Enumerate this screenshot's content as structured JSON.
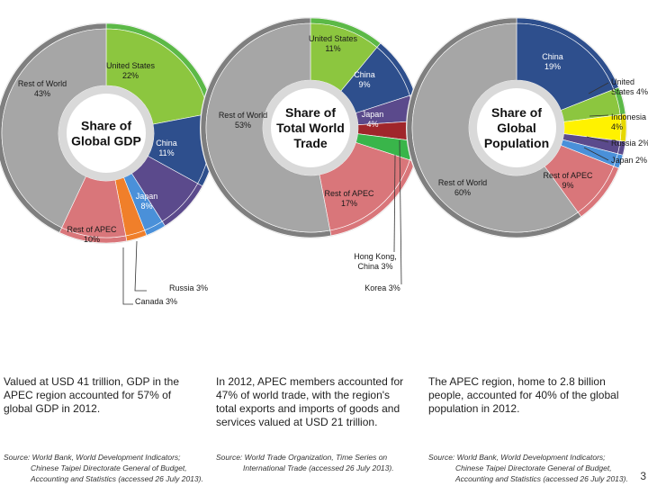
{
  "chart_data": [
    {
      "type": "pie",
      "title": "Share of Global GDP",
      "categories": [
        "United States",
        "China",
        "Japan",
        "Russia",
        "Canada",
        "Rest of APEC",
        "Rest of World"
      ],
      "values": [
        22,
        11,
        8,
        3,
        3,
        10,
        43
      ],
      "labels": [
        "United States\n22%",
        "China\n11%",
        "Japan\n8%",
        "Russia 3%",
        "Canada 3%",
        "Rest of APEC\n10%",
        "Rest of World\n43%"
      ],
      "colors": [
        "#8cc63f",
        "#2e4f8d",
        "#5b4a8c",
        "#4a90d9",
        "#f07f2a",
        "#d9767a",
        "#a6a6a6"
      ],
      "ring_colors": [
        "#5cb947",
        "#2e4f8d",
        "#5b4a8c",
        "#4a90d9",
        "#f07f2a",
        "#d9767a",
        "#7f7f7f"
      ]
    },
    {
      "type": "pie",
      "title": "Share of Total World Trade",
      "categories": [
        "United States",
        "China",
        "Japan",
        "Korea",
        "Hong Kong, China",
        "Rest of APEC",
        "Rest of World"
      ],
      "values": [
        11,
        9,
        4,
        3,
        3,
        17,
        53
      ],
      "labels": [
        "United States\n11%",
        "China\n9%",
        "Japan\n4%",
        "Korea 3%",
        "Hong Kong,\nChina 3%",
        "Rest of APEC\n17%",
        "Rest of World\n53%"
      ],
      "colors": [
        "#8cc63f",
        "#2e4f8d",
        "#5b4a8c",
        "#a0262b",
        "#39b54a",
        "#d9767a",
        "#a6a6a6"
      ],
      "ring_colors": [
        "#5cb947",
        "#2e4f8d",
        "#5b4a8c",
        "#a0262b",
        "#39b54a",
        "#d9767a",
        "#7f7f7f"
      ]
    },
    {
      "type": "pie",
      "title": "Share of Global Population",
      "categories": [
        "China",
        "United States",
        "Indonesia",
        "Russia",
        "Japan",
        "Rest of APEC",
        "Rest of World"
      ],
      "values": [
        19,
        4,
        4,
        2,
        2,
        9,
        60
      ],
      "labels": [
        "China\n19%",
        "United\nStates 4%",
        "Indonesia\n4%",
        "Russia 2%",
        "Japan 2%",
        "Rest of APEC\n9%",
        "Rest of World\n60%"
      ],
      "colors": [
        "#2e4f8d",
        "#8cc63f",
        "#fff200",
        "#5b4a8c",
        "#4a90d9",
        "#d9767a",
        "#a6a6a6"
      ],
      "ring_colors": [
        "#2e4f8d",
        "#5cb947",
        "#e6d800",
        "#5b4a8c",
        "#4a90d9",
        "#d9767a",
        "#7f7f7f"
      ]
    }
  ],
  "captions": [
    "Valued at USD 41 trillion, GDP in the APEC region accounted for 57% of global GDP in 2012.",
    "In 2012, APEC members accounted for 47% of world trade, with the region's total exports and imports of goods and services valued at USD 21 trillion.",
    "The APEC region, home to 2.8 billion people, accounted for 40% of the global population in 2012."
  ],
  "sources": [
    {
      "line1": "Source: World Bank, World Development Indicators;",
      "line2": "Chinese Taipei Directorate General of Budget,",
      "line3": "Accounting and Statistics (accessed 26 July 2013)."
    },
    {
      "line1": "Source: World Trade Organization, Time Series on",
      "line2": "International Trade (accessed 26 July 2013).",
      "line3": ""
    },
    {
      "line1": "Source: World Bank, World Development Indicators;",
      "line2": "Chinese Taipei Directorate General of Budget,",
      "line3": "Accounting and Statistics (accessed 26 July 2013)."
    }
  ],
  "page_number": "3"
}
